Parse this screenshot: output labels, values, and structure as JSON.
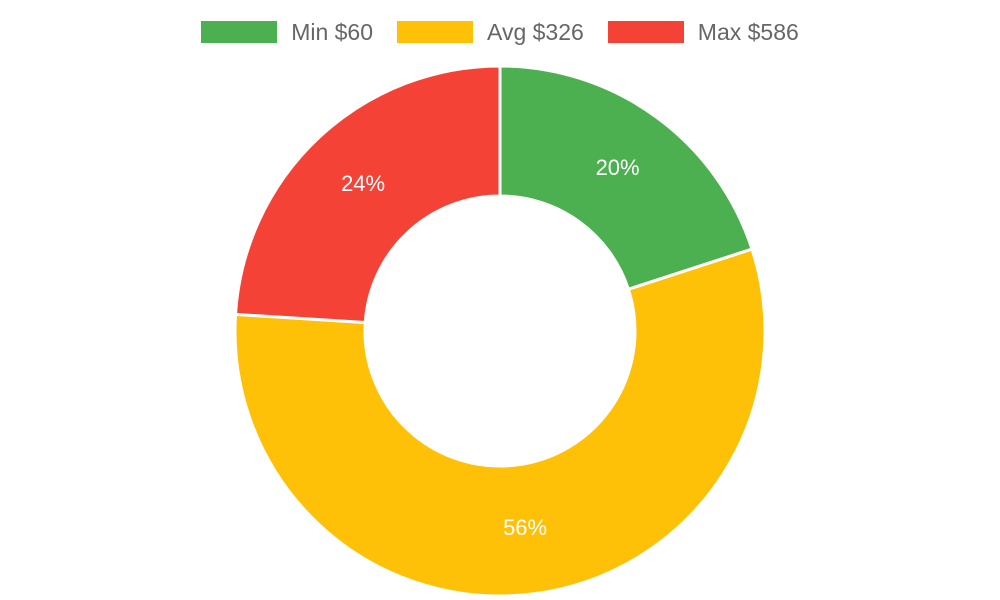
{
  "chart_data": {
    "type": "pie",
    "variant": "doughnut",
    "legend_position": "top",
    "slices": [
      {
        "label": "Min $60",
        "value": 20,
        "value_label": "20%",
        "color": "#4caf50"
      },
      {
        "label": "Avg $326",
        "value": 56,
        "value_label": "56%",
        "color": "#ffc107"
      },
      {
        "label": "Max $586",
        "value": 24,
        "value_label": "24%",
        "color": "#f44336"
      }
    ]
  }
}
